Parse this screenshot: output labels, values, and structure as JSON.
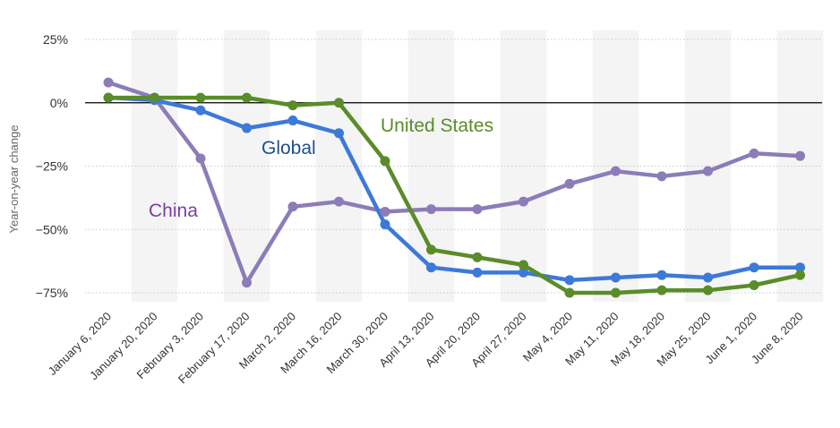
{
  "chart_data": {
    "type": "line",
    "ylabel": "Year-on-year change",
    "xlabel": "",
    "ylim": [
      -80,
      28
    ],
    "yticks": [
      25,
      0,
      -25,
      -50,
      -75
    ],
    "ytick_labels": [
      "25%",
      "0%",
      "−25%",
      "−50%",
      "−75%"
    ],
    "grid": true,
    "categories": [
      "January 6, 2020",
      "January 20, 2020",
      "February 3, 2020",
      "February 17, 2020",
      "March 2, 2020",
      "March 16, 2020",
      "March 30, 2020",
      "April 13, 2020",
      "April 20, 2020",
      "April 27, 2020",
      "May 4, 2020",
      "May 11, 2020",
      "May 18, 2020",
      "May 25, 2020",
      "June 1, 2020",
      "June 8, 2020"
    ],
    "series": [
      {
        "name": "China",
        "color": "#8c7cb8",
        "values": [
          8,
          2,
          -22,
          -71,
          -41,
          -39,
          -43,
          -42,
          -42,
          -39,
          -32,
          -27,
          -29,
          -27,
          -20,
          -21
        ]
      },
      {
        "name": "Global",
        "color": "#3d79d8",
        "values": [
          2,
          1,
          -3,
          -10,
          -7,
          -12,
          -48,
          -65,
          -67,
          -67,
          -70,
          -69,
          -68,
          -69,
          -65,
          -65
        ]
      },
      {
        "name": "United States",
        "color": "#5a8c29",
        "values": [
          2,
          2,
          2,
          2,
          -1,
          0,
          -23,
          -58,
          -61,
          -64,
          -75,
          -75,
          -74,
          -74,
          -72,
          -68
        ]
      }
    ]
  }
}
